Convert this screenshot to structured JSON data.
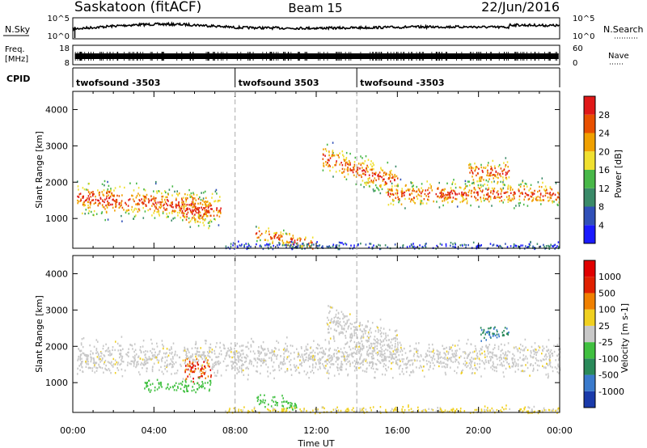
{
  "header": {
    "station": "Saskatoon (fitACF)",
    "beam": "Beam 15",
    "date": "22/Jun/2016"
  },
  "noise_panel": {
    "left_label": "N.Sky",
    "right_label": "N.Search",
    "left_ticks": [
      "10^5",
      "10^0"
    ],
    "right_ticks": [
      "10^5",
      "10^0"
    ]
  },
  "freq_panel": {
    "left_label_line1": "Freq.",
    "left_label_line2": "[MHz]",
    "left_ticks": [
      "18",
      "8"
    ],
    "right_label": "Nave",
    "right_ticks": [
      "60",
      "0"
    ]
  },
  "cpid_panel": {
    "label": "CPID",
    "segments": [
      {
        "name": "twofsound -3503",
        "start": "00:00",
        "end": "08:00"
      },
      {
        "name": "twofsound 3503",
        "start": "08:00",
        "end": "14:00"
      },
      {
        "name": "twofsound -3503",
        "start": "14:00",
        "end": "24:00"
      }
    ]
  },
  "chart_data": [
    {
      "type": "heatmap",
      "parameter": "power",
      "ylabel": "Slant Range [km]",
      "yticks": [
        "4000",
        "3000",
        "2000",
        "1000"
      ],
      "ylim": [
        180,
        4500
      ],
      "colorbar_label": "Power [dB]",
      "colorbar_ticks": [
        "28",
        "24",
        "20",
        "16",
        "12",
        "8",
        "4"
      ],
      "colors": [
        "#1a1aff",
        "#3050b8",
        "#3a8a68",
        "#48b848",
        "#f0e030",
        "#f0a000",
        "#e85000",
        "#e01818"
      ],
      "scatter_bands": [
        {
          "t0": 0.2,
          "t1": 7.3,
          "center_start": 1600,
          "center_end": 1300,
          "width": 650
        },
        {
          "t0": 5.3,
          "t1": 6.8,
          "center_start": 1200,
          "center_end": 1200,
          "width": 600
        },
        {
          "t0": 9.0,
          "t1": 11.8,
          "center_start": 600,
          "center_end": 300,
          "width": 350
        },
        {
          "t0": 12.3,
          "t1": 16.0,
          "center_start": 2700,
          "center_end": 2000,
          "width": 600
        },
        {
          "t0": 15.5,
          "t1": 24.0,
          "center_start": 1700,
          "center_end": 1700,
          "width": 500
        },
        {
          "t0": 19.5,
          "t1": 21.5,
          "center_start": 2300,
          "center_end": 2300,
          "width": 500
        },
        {
          "t0": 7.5,
          "t1": 24.0,
          "center_start": 260,
          "center_end": 260,
          "width": 150
        }
      ]
    },
    {
      "type": "heatmap",
      "parameter": "velocity",
      "xlabel": "Time UT",
      "xticks": [
        "00:00",
        "04:00",
        "08:00",
        "12:00",
        "16:00",
        "20:00",
        "00:00"
      ],
      "xlim": [
        0,
        24
      ],
      "ylabel": "Slant Range [km]",
      "yticks": [
        "4000",
        "3000",
        "2000",
        "1000"
      ],
      "ylim": [
        180,
        4500
      ],
      "colorbar_label": "Velocity [m s-1]",
      "colorbar_ticks": [
        "1000",
        "500",
        "100",
        "25",
        "-25",
        "-100",
        "-500",
        "-1000"
      ],
      "colors": [
        "#1a3aaa",
        "#3a7acc",
        "#2a8a5a",
        "#40c040",
        "#c8c8c8",
        "#f0d020",
        "#f08000",
        "#e02000",
        "#e00000"
      ],
      "scatter_bands": [
        {
          "t0": 0.2,
          "t1": 24.0,
          "center_start": 1700,
          "center_end": 1700,
          "width": 650
        },
        {
          "t0": 12.5,
          "t1": 16.0,
          "center_start": 2700,
          "center_end": 2000,
          "width": 700
        },
        {
          "t0": 5.5,
          "t1": 6.8,
          "center_start": 1400,
          "center_end": 1400,
          "width": 500
        },
        {
          "t0": 3.5,
          "t1": 6.8,
          "center_start": 950,
          "center_end": 950,
          "width": 250
        },
        {
          "t0": 9.0,
          "t1": 11.0,
          "center_start": 550,
          "center_end": 400,
          "width": 250
        },
        {
          "t0": 20.0,
          "t1": 21.5,
          "center_start": 2400,
          "center_end": 2400,
          "width": 300
        },
        {
          "t0": 7.5,
          "t1": 24.0,
          "center_start": 260,
          "center_end": 260,
          "width": 150
        }
      ]
    }
  ]
}
